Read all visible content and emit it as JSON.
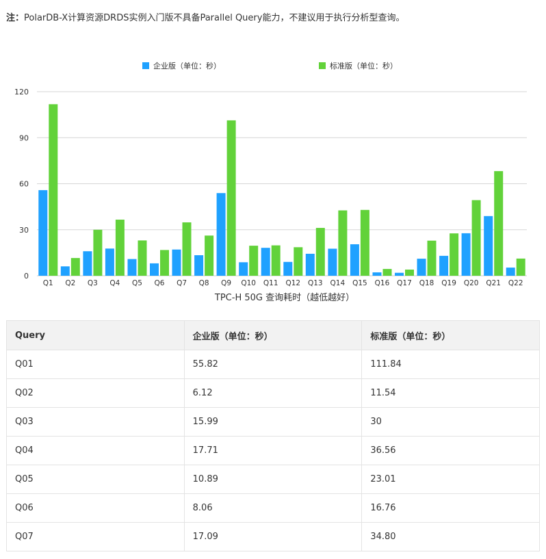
{
  "note": {
    "prefix": "注：",
    "text": "PolarDB-X计算资源DRDS实例入门版不具备Parallel Query能力，不建议用于执行分析型查询。"
  },
  "chart_data": {
    "type": "bar",
    "title": "",
    "xlabel": "TPC-H 50G 查询耗时（越低越好）",
    "ylabel": "",
    "ylim": [
      0,
      120
    ],
    "yticks": [
      0,
      30,
      60,
      90,
      120
    ],
    "grid": true,
    "legend_position": "top",
    "categories": [
      "Q1",
      "Q2",
      "Q3",
      "Q4",
      "Q5",
      "Q6",
      "Q7",
      "Q8",
      "Q9",
      "Q10",
      "Q11",
      "Q12",
      "Q13",
      "Q14",
      "Q15",
      "Q16",
      "Q17",
      "Q18",
      "Q19",
      "Q20",
      "Q21",
      "Q22"
    ],
    "series": [
      {
        "name": "企业版（单位：秒）",
        "color": "#1fa1ff",
        "values": [
          55.82,
          6.12,
          15.99,
          17.71,
          10.89,
          8.06,
          17.09,
          13.4,
          53.9,
          8.8,
          18.2,
          9.0,
          14.3,
          17.6,
          20.5,
          2.2,
          1.9,
          11.1,
          13.0,
          27.7,
          38.9,
          5.3
        ]
      },
      {
        "name": "标准版（单位：秒）",
        "color": "#62d23a",
        "values": [
          111.84,
          11.54,
          30,
          36.56,
          23.01,
          16.76,
          34.8,
          26.2,
          101.3,
          19.6,
          19.8,
          18.6,
          31.2,
          42.6,
          42.9,
          4.4,
          4.0,
          22.9,
          27.6,
          49.3,
          68.2,
          11.2
        ]
      }
    ]
  },
  "table": {
    "headers": [
      "Query",
      "企业版（单位：秒）",
      "标准版（单位：秒）"
    ],
    "rows": [
      [
        "Q01",
        "55.82",
        "111.84"
      ],
      [
        "Q02",
        "6.12",
        "11.54"
      ],
      [
        "Q03",
        "15.99",
        "30"
      ],
      [
        "Q04",
        "17.71",
        "36.56"
      ],
      [
        "Q05",
        "10.89",
        "23.01"
      ],
      [
        "Q06",
        "8.06",
        "16.76"
      ],
      [
        "Q07",
        "17.09",
        "34.80"
      ]
    ]
  }
}
